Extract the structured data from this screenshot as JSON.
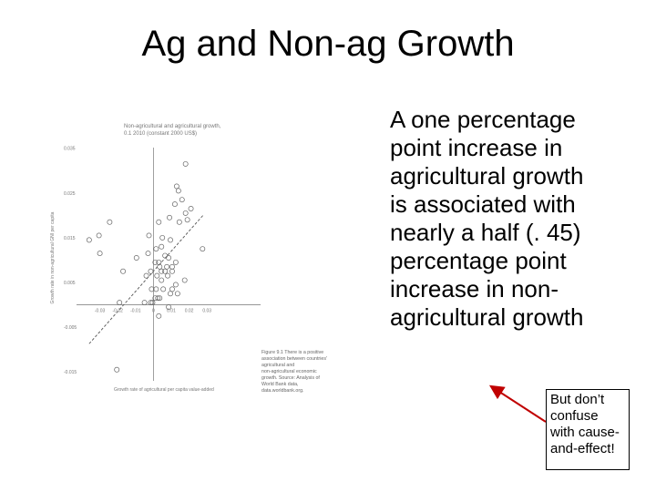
{
  "slide": {
    "title": "Ag and Non-ag Growth",
    "body_lines": [
      "A one percentage",
      "point increase in",
      "agricultural growth",
      "is associated with",
      "nearly a half (. 45)",
      "percentage point",
      "increase in non-",
      "agricultural growth"
    ],
    "callout_lines": [
      "But don’t",
      "confuse",
      "with cause-",
      "and-effect!"
    ],
    "accent_color": "#c00000"
  },
  "chart_data": {
    "type": "scatter",
    "title": "Non-agricultural and agricultural growth, 0.1 2010 (constant 2000 US$)",
    "xlabel": "Growth rate of agricultural per capita value-added",
    "ylabel": "Growth rate in non-agricultural GNI per capita",
    "xlim": [
      -0.04,
      0.06
    ],
    "ylim": [
      -0.017,
      0.038
    ],
    "x_ticks": [
      "-0.03",
      "-0.02",
      "-0.01",
      "0",
      "0.01",
      "0.02",
      "0.03"
    ],
    "y_ticks": [
      "0.035",
      "0.025",
      "0.015",
      "0.005",
      "-0.005",
      "-0.015"
    ],
    "trendline": {
      "slope": 0.45,
      "intercept": 0.0075,
      "style": "dashed"
    },
    "figure_caption": "Figure 9.1 There is a positive association between countries' agricultural and non-agricultural economic growth. Source: Analysis of World Bank data, data.worldbank.org.",
    "points": [
      [
        0.018,
        0.0315
      ],
      [
        0.013,
        0.0265
      ],
      [
        0.014,
        0.0255
      ],
      [
        0.016,
        0.0235
      ],
      [
        0.021,
        0.0215
      ],
      [
        0.012,
        0.0225
      ],
      [
        0.018,
        0.0205
      ],
      [
        0.019,
        0.019
      ],
      [
        0.009,
        0.0195
      ],
      [
        0.0145,
        0.0185
      ],
      [
        0.003,
        0.0185
      ],
      [
        0.005,
        0.015
      ],
      [
        0.0095,
        0.0145
      ],
      [
        0.0015,
        0.0125
      ],
      [
        0.0045,
        0.013
      ],
      [
        0.0065,
        0.011
      ],
      [
        0.0085,
        0.0105
      ],
      [
        0.001,
        0.0095
      ],
      [
        -0.003,
        0.0115
      ],
      [
        0.0035,
        0.0085
      ],
      [
        0.0075,
        0.0085
      ],
      [
        0.0105,
        0.0085
      ],
      [
        -0.0015,
        0.0075
      ],
      [
        0.0045,
        0.0075
      ],
      [
        0.0065,
        0.0075
      ],
      [
        0.002,
        0.0065
      ],
      [
        0.008,
        0.0065
      ],
      [
        0.0105,
        0.0075
      ],
      [
        0.0125,
        0.0095
      ],
      [
        -0.004,
        0.0065
      ],
      [
        0.0045,
        0.0055
      ],
      [
        0.0125,
        0.0045
      ],
      [
        0.0175,
        0.0055
      ],
      [
        -0.017,
        0.0075
      ],
      [
        -0.0095,
        0.0105
      ],
      [
        -0.001,
        0.0035
      ],
      [
        0.0015,
        0.0035
      ],
      [
        0.0055,
        0.0035
      ],
      [
        0.0105,
        0.0035
      ],
      [
        0.0135,
        0.0025
      ],
      [
        0.0275,
        0.0125
      ],
      [
        -0.03,
        0.0115
      ],
      [
        -0.0305,
        0.0155
      ],
      [
        -0.0245,
        0.0185
      ],
      [
        -0.036,
        0.0145
      ],
      [
        0.003,
        0.0095
      ],
      [
        -0.0025,
        0.0155
      ],
      [
        -0.019,
        0.0005
      ],
      [
        -0.0015,
        0.0005
      ],
      [
        0.001,
        0.0015
      ],
      [
        0.0025,
        0.0015
      ],
      [
        0.0035,
        0.0015
      ],
      [
        -0.005,
        0.0005
      ],
      [
        -0.0005,
        0.0005
      ],
      [
        0.003,
        -0.0025
      ],
      [
        0.0095,
        0.0025
      ],
      [
        0.0085,
        -0.0005
      ],
      [
        -0.0205,
        -0.0145
      ]
    ]
  }
}
